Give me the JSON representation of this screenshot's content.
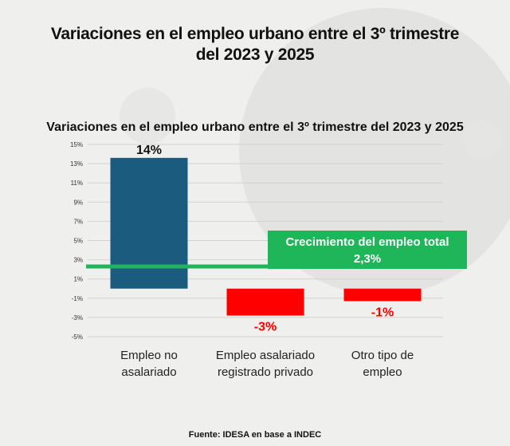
{
  "header": {
    "title_line1": "Variaciones en el empleo urbano entre el 3º trimestre",
    "title_line2": "del 2023 y 2025"
  },
  "footer": {
    "source": "Fuente: IDESA en base a INDEC"
  },
  "colors": {
    "bar_positive": "#1b5b7e",
    "bar_negative": "#ff0000",
    "total_line": "#1fb65a",
    "negative_label": "#ff0000"
  },
  "chart_data": {
    "type": "bar",
    "title": "Variaciones en el empleo urbano entre el 3º trimestre del 2023 y 2025",
    "categories": [
      [
        "Empleo no",
        "asalariado"
      ],
      [
        "Empleo asalariado",
        "registrado privado"
      ],
      [
        "Otro tipo de",
        "empleo"
      ]
    ],
    "values": [
      13.6,
      -2.8,
      -1.3
    ],
    "value_labels": [
      "14%",
      "-3%",
      "-1%"
    ],
    "y_ticks": [
      "15%",
      "13%",
      "11%",
      "9%",
      "7%",
      "5%",
      "3%",
      "1%",
      "-1%",
      "-3%",
      "-5%"
    ],
    "ylim": [
      -5,
      15
    ],
    "grid": true,
    "reference_line": {
      "value": 2.3,
      "label_line1": "Crecimiento del empleo total",
      "label_line2": "2,3%"
    }
  }
}
